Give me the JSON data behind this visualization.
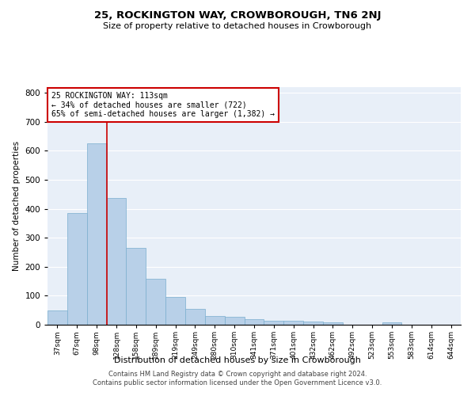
{
  "title1": "25, ROCKINGTON WAY, CROWBOROUGH, TN6 2NJ",
  "title2": "Size of property relative to detached houses in Crowborough",
  "xlabel": "Distribution of detached houses by size in Crowborough",
  "ylabel": "Number of detached properties",
  "categories": [
    "37sqm",
    "67sqm",
    "98sqm",
    "128sqm",
    "158sqm",
    "189sqm",
    "219sqm",
    "249sqm",
    "280sqm",
    "310sqm",
    "341sqm",
    "371sqm",
    "401sqm",
    "432sqm",
    "462sqm",
    "492sqm",
    "523sqm",
    "553sqm",
    "583sqm",
    "614sqm",
    "644sqm"
  ],
  "values": [
    48,
    385,
    625,
    438,
    265,
    158,
    95,
    55,
    30,
    28,
    18,
    13,
    15,
    10,
    7,
    1,
    0,
    8,
    0,
    0,
    0
  ],
  "bar_color": "#b8d0e8",
  "bar_edge_color": "#7aaece",
  "background_color": "#e8eff8",
  "ylim": [
    0,
    820
  ],
  "yticks": [
    0,
    100,
    200,
    300,
    400,
    500,
    600,
    700,
    800
  ],
  "red_line_x": 2.5,
  "annotation_text": "25 ROCKINGTON WAY: 113sqm\n← 34% of detached houses are smaller (722)\n65% of semi-detached houses are larger (1,382) →",
  "annotation_box_color": "#ffffff",
  "annotation_box_edge_color": "#cc0000",
  "footer_line1": "Contains HM Land Registry data © Crown copyright and database right 2024.",
  "footer_line2": "Contains public sector information licensed under the Open Government Licence v3.0."
}
